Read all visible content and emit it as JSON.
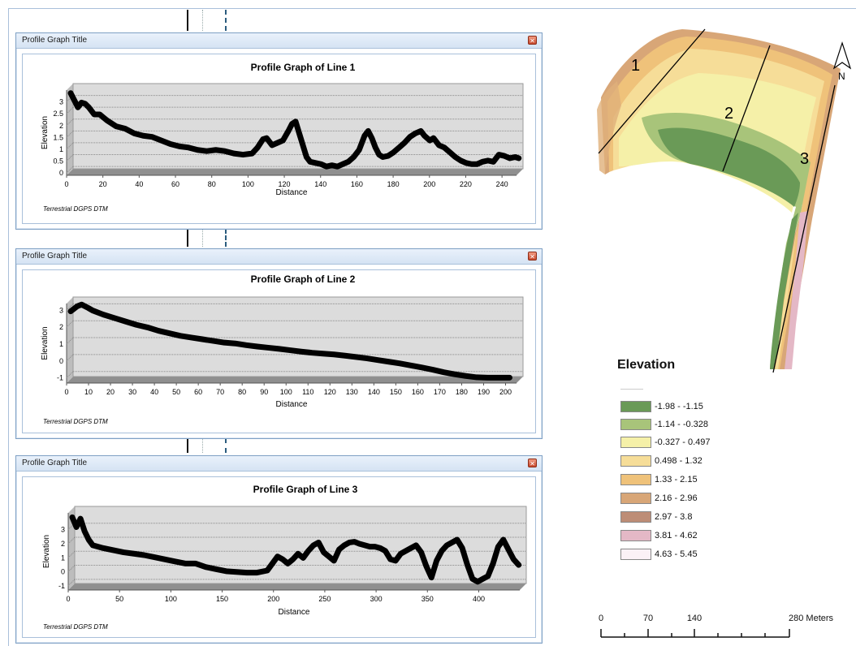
{
  "windows": [
    {
      "window_title": "Profile Graph Title",
      "graph_title": "Profile Graph of Line 1",
      "x_label": "Distance",
      "y_label": "Elevation",
      "footer": "Terrestrial DGPS DTM",
      "x_ticks": [
        "0",
        "20",
        "40",
        "60",
        "80",
        "100",
        "120",
        "140",
        "160",
        "180",
        "200",
        "220",
        "240"
      ],
      "y_ticks": [
        "0",
        "0.5",
        "1",
        "1.5",
        "2",
        "2.5",
        "3"
      ]
    },
    {
      "window_title": "Profile Graph Title",
      "graph_title": "Profile Graph of Line 2",
      "x_label": "Distance",
      "y_label": "Elevation",
      "footer": "Terrestrial DGPS DTM",
      "x_ticks": [
        "0",
        "10",
        "20",
        "30",
        "40",
        "50",
        "60",
        "70",
        "80",
        "90",
        "100",
        "110",
        "120",
        "130",
        "140",
        "150",
        "160",
        "170",
        "180",
        "190",
        "200"
      ],
      "y_ticks": [
        "-1",
        "0",
        "1",
        "2",
        "3"
      ]
    },
    {
      "window_title": "Profile Graph Title",
      "graph_title": "Profile Graph of Line 3",
      "x_label": "Distance",
      "y_label": "Elevation",
      "footer": "Terrestrial DGPS DTM",
      "x_ticks": [
        "0",
        "50",
        "100",
        "150",
        "200",
        "250",
        "300",
        "350",
        "400"
      ],
      "y_ticks": [
        "-1",
        "0",
        "1",
        "2",
        "3"
      ]
    }
  ],
  "chart_data": [
    {
      "type": "line",
      "title": "Profile Graph of Line 1",
      "xlabel": "Distance",
      "ylabel": "Elevation",
      "xlim": [
        0,
        248
      ],
      "ylim": [
        -0.1,
        3.5
      ],
      "series": [
        {
          "x": [
            0,
            2,
            4,
            6,
            8,
            10,
            13,
            16,
            20,
            25,
            30,
            35,
            40,
            45,
            50,
            55,
            60,
            65,
            70,
            75,
            80,
            85,
            90,
            95,
            100,
            103,
            106,
            108,
            111,
            114,
            117,
            120,
            122,
            124,
            126,
            128,
            130,
            132,
            135,
            138,
            141,
            144,
            147,
            150,
            153,
            156,
            159,
            162,
            164,
            166,
            168,
            170,
            172,
            175,
            178,
            181,
            184,
            187,
            190,
            193,
            195,
            198,
            200,
            203,
            206,
            209,
            212,
            215,
            218,
            221,
            224,
            227,
            230,
            233,
            236,
            239,
            242,
            245,
            247
          ],
          "y": [
            3.2,
            2.9,
            2.6,
            2.8,
            2.75,
            2.6,
            2.3,
            2.3,
            2.05,
            1.8,
            1.7,
            1.5,
            1.4,
            1.35,
            1.2,
            1.05,
            0.95,
            0.9,
            0.8,
            0.75,
            0.8,
            0.75,
            0.65,
            0.6,
            0.65,
            0.9,
            1.25,
            1.3,
            1.0,
            1.1,
            1.2,
            1.6,
            1.9,
            2.0,
            1.5,
            1.0,
            0.5,
            0.3,
            0.25,
            0.2,
            0.1,
            0.15,
            0.1,
            0.2,
            0.3,
            0.5,
            0.8,
            1.4,
            1.6,
            1.3,
            0.9,
            0.6,
            0.5,
            0.55,
            0.7,
            0.9,
            1.1,
            1.35,
            1.5,
            1.6,
            1.4,
            1.2,
            1.3,
            1.0,
            0.9,
            0.7,
            0.5,
            0.35,
            0.25,
            0.2,
            0.2,
            0.3,
            0.35,
            0.3,
            0.6,
            0.55,
            0.45,
            0.5,
            0.45
          ]
        }
      ]
    },
    {
      "type": "line",
      "title": "Profile Graph of Line 2",
      "xlabel": "Distance",
      "ylabel": "Elevation",
      "xlim": [
        0,
        205
      ],
      "ylim": [
        -1.3,
        3.4
      ],
      "series": [
        {
          "x": [
            0,
            3,
            5,
            8,
            10,
            15,
            20,
            25,
            30,
            35,
            40,
            45,
            50,
            55,
            60,
            65,
            70,
            75,
            80,
            85,
            90,
            95,
            100,
            105,
            110,
            115,
            120,
            125,
            130,
            135,
            140,
            145,
            150,
            155,
            160,
            165,
            170,
            175,
            180,
            185,
            190,
            195,
            200
          ],
          "y": [
            2.7,
            3.0,
            3.1,
            2.9,
            2.75,
            2.5,
            2.3,
            2.1,
            1.9,
            1.75,
            1.55,
            1.4,
            1.25,
            1.15,
            1.05,
            0.95,
            0.85,
            0.8,
            0.7,
            0.62,
            0.55,
            0.48,
            0.4,
            0.32,
            0.25,
            0.2,
            0.15,
            0.08,
            0.0,
            -0.08,
            -0.18,
            -0.28,
            -0.38,
            -0.5,
            -0.62,
            -0.75,
            -0.9,
            -1.02,
            -1.12,
            -1.2,
            -1.22,
            -1.22,
            -1.22
          ]
        }
      ]
    },
    {
      "type": "line",
      "title": "Profile Graph of Line 3",
      "xlabel": "Distance",
      "ylabel": "Elevation",
      "xlim": [
        0,
        440
      ],
      "ylim": [
        -1.3,
        4.2
      ],
      "series": [
        {
          "x": [
            0,
            4,
            8,
            12,
            16,
            20,
            30,
            40,
            50,
            60,
            70,
            80,
            90,
            100,
            110,
            120,
            130,
            140,
            150,
            160,
            170,
            180,
            190,
            200,
            205,
            210,
            215,
            220,
            225,
            230,
            235,
            240,
            245,
            250,
            255,
            260,
            265,
            270,
            275,
            280,
            285,
            290,
            295,
            300,
            305,
            310,
            315,
            320,
            325,
            330,
            335,
            340,
            345,
            350,
            355,
            360,
            365,
            370,
            375,
            380,
            385,
            390,
            395,
            400,
            405,
            410,
            415,
            420,
            425,
            430,
            435
          ],
          "y": [
            3.6,
            2.9,
            3.5,
            2.6,
            2.0,
            1.6,
            1.4,
            1.25,
            1.1,
            1.0,
            0.9,
            0.75,
            0.6,
            0.45,
            0.3,
            0.3,
            0.05,
            -0.1,
            -0.25,
            -0.3,
            -0.35,
            -0.35,
            -0.2,
            0.8,
            0.6,
            0.3,
            0.6,
            1.0,
            0.7,
            1.2,
            1.6,
            1.8,
            1.1,
            0.8,
            0.5,
            1.3,
            1.6,
            1.8,
            1.85,
            1.7,
            1.6,
            1.5,
            1.5,
            1.4,
            1.2,
            0.6,
            0.5,
            1.0,
            1.2,
            1.4,
            1.6,
            1.1,
            0.1,
            -0.7,
            0.5,
            1.2,
            1.6,
            1.8,
            2.0,
            1.4,
            0.2,
            -0.8,
            -1.0,
            -0.8,
            -0.6,
            0.3,
            1.5,
            2.0,
            1.3,
            0.6,
            0.2
          ]
        }
      ]
    }
  ],
  "map": {
    "line_labels": [
      "1",
      "2",
      "3"
    ],
    "north_label": "N"
  },
  "legend": {
    "title": "Elevation",
    "items": [
      {
        "label": "-1.98 - -1.15",
        "color": "#6a9a57"
      },
      {
        "label": "-1.14 - -0.328",
        "color": "#a8c47a"
      },
      {
        "label": "-0.327 - 0.497",
        "color": "#f5f0a8"
      },
      {
        "label": "0.498 - 1.32",
        "color": "#f6dd98"
      },
      {
        "label": "1.33 - 2.15",
        "color": "#efc27a"
      },
      {
        "label": "2.16 - 2.96",
        "color": "#d8a677"
      },
      {
        "label": "2.97 - 3.8",
        "color": "#bd8d76"
      },
      {
        "label": "3.81 - 4.62",
        "color": "#e4b8c6"
      },
      {
        "label": "4.63 - 5.45",
        "color": "#fbf1f6"
      }
    ]
  },
  "scale_bar": {
    "labels": [
      "0",
      "70",
      "140",
      "280 Meters"
    ]
  }
}
